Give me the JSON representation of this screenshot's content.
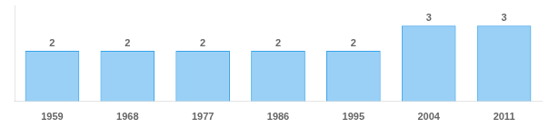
{
  "chart_data": {
    "type": "bar",
    "categories": [
      "1959",
      "1968",
      "1977",
      "1986",
      "1995",
      "2004",
      "2011"
    ],
    "values": [
      2,
      2,
      2,
      2,
      2,
      3,
      3
    ],
    "ylim": [
      0,
      3.8
    ],
    "data_labels": true,
    "tick_labels": "x",
    "grid": false
  }
}
